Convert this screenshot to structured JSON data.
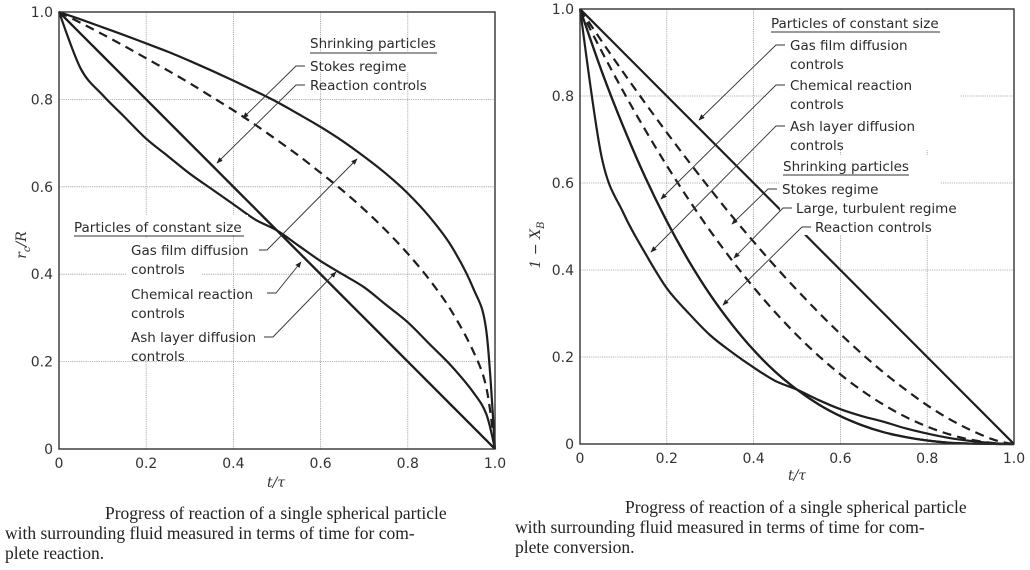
{
  "chart_data": [
    {
      "type": "line",
      "title": "",
      "xlabel": "t/τ",
      "ylabel": "r_c/R",
      "ylabel_main": "r",
      "ylabel_sub": "c",
      "ylabel_tail": "/R",
      "xlim": [
        0,
        1.0
      ],
      "ylim": [
        0,
        1.0
      ],
      "grid": true,
      "xticks": [
        "0",
        "0.2",
        "0.4",
        "0.6",
        "0.8",
        "1.0"
      ],
      "yticks": [
        "0",
        "0.2",
        "0.4",
        "0.6",
        "0.8",
        "1.0"
      ],
      "x": [
        0,
        0.05,
        0.1,
        0.15,
        0.2,
        0.25,
        0.3,
        0.35,
        0.4,
        0.45,
        0.5,
        0.55,
        0.6,
        0.65,
        0.7,
        0.75,
        0.8,
        0.85,
        0.9,
        0.95,
        0.98,
        1.0
      ],
      "series": [
        {
          "name": "Gas film diffusion controls",
          "group": "Particles of constant size",
          "style": "solid",
          "values": [
            1,
            0.983,
            0.965,
            0.947,
            0.928,
            0.909,
            0.888,
            0.866,
            0.843,
            0.819,
            0.794,
            0.766,
            0.737,
            0.705,
            0.669,
            0.63,
            0.585,
            0.531,
            0.464,
            0.368,
            0.271,
            0
          ]
        },
        {
          "name": "Chemical reaction controls",
          "group": "Particles of constant size",
          "style": "solid",
          "values": [
            1,
            0.95,
            0.9,
            0.85,
            0.8,
            0.75,
            0.7,
            0.65,
            0.6,
            0.55,
            0.5,
            0.45,
            0.4,
            0.35,
            0.3,
            0.25,
            0.2,
            0.15,
            0.1,
            0.05,
            0.02,
            0
          ]
        },
        {
          "name": "Ash layer diffusion controls",
          "group": "Particles of constant size",
          "style": "solid",
          "values": [
            1,
            0.87,
            0.81,
            0.76,
            0.71,
            0.67,
            0.63,
            0.595,
            0.56,
            0.525,
            0.5,
            0.465,
            0.43,
            0.4,
            0.37,
            0.33,
            0.29,
            0.24,
            0.19,
            0.13,
            0.08,
            0
          ]
        },
        {
          "name": "Stokes regime",
          "group": "Shrinking particles",
          "style": "dashed",
          "values": [
            1,
            0.975,
            0.949,
            0.922,
            0.894,
            0.866,
            0.837,
            0.806,
            0.775,
            0.742,
            0.707,
            0.671,
            0.632,
            0.592,
            0.548,
            0.5,
            0.447,
            0.387,
            0.316,
            0.224,
            0.141,
            0
          ]
        },
        {
          "name": "Reaction controls",
          "group": "Shrinking particles",
          "style": "solid",
          "values": [
            1,
            0.95,
            0.9,
            0.85,
            0.8,
            0.75,
            0.7,
            0.65,
            0.6,
            0.55,
            0.5,
            0.45,
            0.4,
            0.35,
            0.3,
            0.25,
            0.2,
            0.15,
            0.1,
            0.05,
            0.02,
            0
          ]
        }
      ],
      "annotations": {
        "shrinking_header": "Shrinking particles",
        "stokes": "Stokes regime",
        "reaction": "Reaction controls",
        "constant_header": "Particles of constant size",
        "gas_film_1": "Gas film diffusion",
        "gas_film_2": "controls",
        "chem_1": "Chemical reaction",
        "chem_2": "controls",
        "ash_1": "Ash layer diffusion",
        "ash_2": "controls"
      },
      "caption_line1": "Progress of reaction of a single spherical particle",
      "caption_line2": "with surrounding fluid measured in terms of time for com-",
      "caption_line3": "plete reaction."
    },
    {
      "type": "line",
      "title": "",
      "xlabel": "t/τ",
      "ylabel": "1 − X_B",
      "ylabel_main": "1 − X",
      "ylabel_sub": "B",
      "xlim": [
        0,
        1.0
      ],
      "ylim": [
        0,
        1.0
      ],
      "grid": true,
      "xticks": [
        "0",
        "0.2",
        "0.4",
        "0.6",
        "0.8",
        "1.0"
      ],
      "yticks": [
        "0",
        "0.2",
        "0.4",
        "0.6",
        "0.8",
        "1.0"
      ],
      "x": [
        0,
        0.05,
        0.1,
        0.15,
        0.2,
        0.25,
        0.3,
        0.35,
        0.4,
        0.45,
        0.5,
        0.55,
        0.6,
        0.65,
        0.7,
        0.75,
        0.8,
        0.85,
        0.9,
        0.95,
        0.98,
        1.0
      ],
      "series": [
        {
          "name": "Gas film diffusion controls",
          "group": "Particles of constant size",
          "style": "solid",
          "values": [
            1,
            0.95,
            0.9,
            0.85,
            0.8,
            0.75,
            0.7,
            0.65,
            0.6,
            0.55,
            0.5,
            0.45,
            0.4,
            0.35,
            0.3,
            0.25,
            0.2,
            0.15,
            0.1,
            0.05,
            0.02,
            0
          ]
        },
        {
          "name": "Chemical reaction controls",
          "group": "Particles of constant size",
          "style": "solid",
          "values": [
            1,
            0.857,
            0.729,
            0.614,
            0.512,
            0.422,
            0.343,
            0.275,
            0.216,
            0.166,
            0.125,
            0.091,
            0.064,
            0.043,
            0.027,
            0.016,
            0.008,
            0.003,
            0.001,
            0.0001,
            0,
            0
          ]
        },
        {
          "name": "Ash layer diffusion controls",
          "group": "Particles of constant size",
          "style": "solid",
          "values": [
            1,
            0.659,
            0.531,
            0.439,
            0.358,
            0.301,
            0.25,
            0.211,
            0.176,
            0.145,
            0.125,
            0.101,
            0.08,
            0.064,
            0.051,
            0.036,
            0.024,
            0.014,
            0.007,
            0.002,
            0.0005,
            0
          ]
        },
        {
          "name": "Stokes regime",
          "group": "Shrinking particles",
          "style": "dashed",
          "values": [
            1,
            0.926,
            0.854,
            0.784,
            0.716,
            0.65,
            0.586,
            0.524,
            0.465,
            0.408,
            0.354,
            0.302,
            0.253,
            0.207,
            0.164,
            0.125,
            0.089,
            0.058,
            0.032,
            0.011,
            0.003,
            0
          ]
        },
        {
          "name": "Large, turbulent regime",
          "group": "Shrinking particles",
          "style": "dashed",
          "values": [
            1,
            0.9025,
            0.81,
            0.7225,
            0.64,
            0.5625,
            0.49,
            0.4225,
            0.36,
            0.3025,
            0.25,
            0.2025,
            0.16,
            0.1225,
            0.09,
            0.0625,
            0.04,
            0.0225,
            0.01,
            0.0025,
            0.0004,
            0
          ]
        },
        {
          "name": "Reaction controls",
          "group": "Shrinking particles",
          "style": "solid",
          "values": [
            1,
            0.857,
            0.729,
            0.614,
            0.512,
            0.422,
            0.343,
            0.275,
            0.216,
            0.166,
            0.125,
            0.091,
            0.064,
            0.043,
            0.027,
            0.016,
            0.008,
            0.003,
            0.001,
            0.0001,
            0,
            0
          ]
        }
      ],
      "annotations": {
        "constant_header": "Particles of constant size",
        "gas_film_1": "Gas film diffusion",
        "gas_film_2": "controls",
        "chem_1": "Chemical reaction",
        "chem_2": "controls",
        "ash_1": "Ash layer diffusion",
        "ash_2": "controls",
        "shrinking_header": "Shrinking particles",
        "stokes": "Stokes regime",
        "turbulent": "Large, turbulent regime",
        "reaction": "Reaction controls"
      },
      "caption_line1": "Progress of reaction of a single spherical particle",
      "caption_line2": "with surrounding fluid measured in terms of time for com-",
      "caption_line3": "plete conversion."
    }
  ]
}
